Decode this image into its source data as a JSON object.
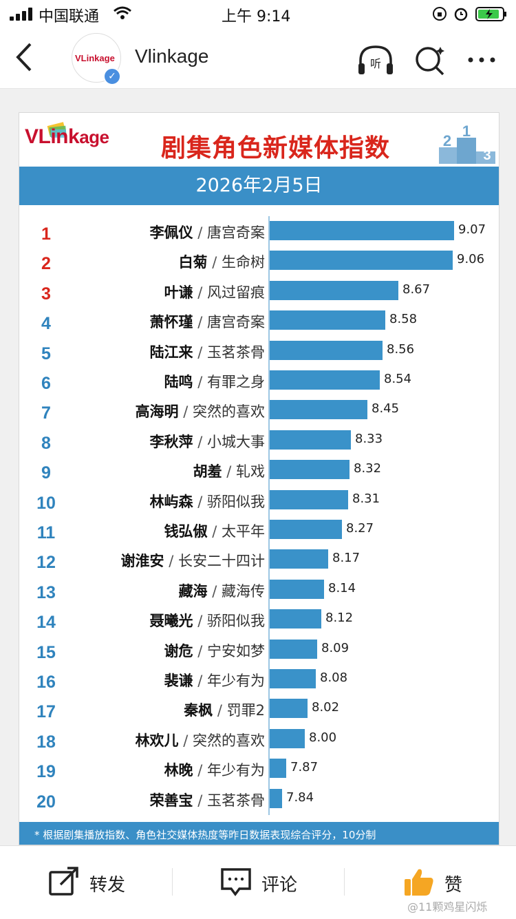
{
  "status": {
    "carrier": "中国联通",
    "time": "上午 9:14"
  },
  "nav": {
    "title": "Vlinkage",
    "avatar_text": "VLinkage"
  },
  "card": {
    "brand_main": "VLink",
    "brand_small": "age",
    "headline": "剧集角色新媒体指数",
    "date": "2026年2月5日",
    "separator": "/",
    "footnote": "* 根据剧集播放指数、角色社交媒体热度等昨日数据表现综合评分，10分制"
  },
  "chart_data": {
    "type": "bar",
    "orientation": "horizontal",
    "title": "剧集角色新媒体指数",
    "date": "2026年2月5日",
    "xlim": [
      6,
      10
    ],
    "rows": [
      {
        "rank": "1",
        "name": "李佩仪",
        "show": "唐宫奇案",
        "value": 9.07,
        "value_label": "9.07"
      },
      {
        "rank": "2",
        "name": "白菊",
        "show": "生命树",
        "value": 9.06,
        "value_label": "9.06"
      },
      {
        "rank": "3",
        "name": "叶谦",
        "show": "风过留痕",
        "value": 8.67,
        "value_label": "8.67"
      },
      {
        "rank": "4",
        "name": "萧怀瑾",
        "show": "唐宫奇案",
        "value": 8.58,
        "value_label": "8.58"
      },
      {
        "rank": "5",
        "name": "陆江来",
        "show": "玉茗茶骨",
        "value": 8.56,
        "value_label": "8.56"
      },
      {
        "rank": "6",
        "name": "陆鸣",
        "show": "有罪之身",
        "value": 8.54,
        "value_label": "8.54"
      },
      {
        "rank": "7",
        "name": "高海明",
        "show": "突然的喜欢",
        "value": 8.45,
        "value_label": "8.45"
      },
      {
        "rank": "8",
        "name": "李秋萍",
        "show": "小城大事",
        "value": 8.33,
        "value_label": "8.33"
      },
      {
        "rank": "9",
        "name": "胡羞",
        "show": "轧戏",
        "value": 8.32,
        "value_label": "8.32"
      },
      {
        "rank": "10",
        "name": "林屿森",
        "show": "骄阳似我",
        "value": 8.31,
        "value_label": "8.31"
      },
      {
        "rank": "11",
        "name": "钱弘俶",
        "show": "太平年",
        "value": 8.27,
        "value_label": "8.27"
      },
      {
        "rank": "12",
        "name": "谢淮安",
        "show": "长安二十四计",
        "value": 8.17,
        "value_label": "8.17"
      },
      {
        "rank": "13",
        "name": "藏海",
        "show": "藏海传",
        "value": 8.14,
        "value_label": "8.14"
      },
      {
        "rank": "14",
        "name": "聂曦光",
        "show": "骄阳似我",
        "value": 8.12,
        "value_label": "8.12"
      },
      {
        "rank": "15",
        "name": "谢危",
        "show": "宁安如梦",
        "value": 8.09,
        "value_label": "8.09"
      },
      {
        "rank": "16",
        "name": "裴谦",
        "show": "年少有为",
        "value": 8.08,
        "value_label": "8.08"
      },
      {
        "rank": "17",
        "name": "秦枫",
        "show": "罚罪2",
        "value": 8.02,
        "value_label": "8.02"
      },
      {
        "rank": "18",
        "name": "林欢儿",
        "show": "突然的喜欢",
        "value": 8.0,
        "value_label": "8.00"
      },
      {
        "rank": "19",
        "name": "林晚",
        "show": "年少有为",
        "value": 7.87,
        "value_label": "7.87"
      },
      {
        "rank": "20",
        "name": "荣善宝",
        "show": "玉茗茶骨",
        "value": 7.84,
        "value_label": "7.84"
      }
    ]
  },
  "colors": {
    "bar": "#3a92c9",
    "rank_top": "#d9261c",
    "rank_rest": "#2f83bd",
    "band": "#3a8fc7",
    "like": "#f5a623"
  },
  "actions": {
    "repost": "转发",
    "comment": "评论",
    "like": "赞"
  },
  "watermark": "@11颗鸡星闪烁"
}
